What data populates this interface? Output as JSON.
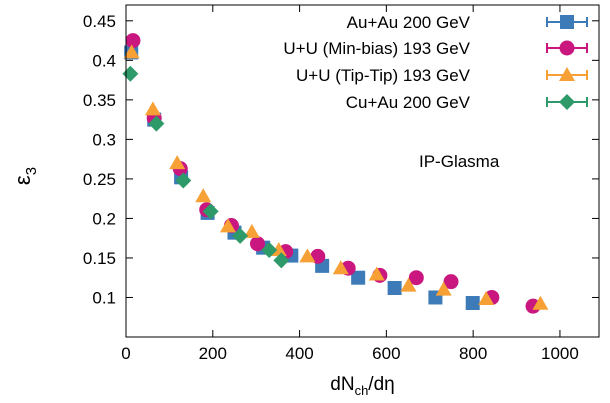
{
  "chart_data": {
    "type": "scatter",
    "title": "",
    "xlabel": {
      "main": "dN",
      "sub": "ch",
      "rest": "/dη"
    },
    "ylabel": {
      "main": "ε",
      "sub": "3"
    },
    "xlim": [
      0,
      1090
    ],
    "ylim": [
      0.05,
      0.47
    ],
    "xticks": [
      0,
      200,
      400,
      600,
      800,
      1000
    ],
    "yticks": [
      0.1,
      0.15,
      0.2,
      0.25,
      0.3,
      0.35,
      0.4,
      0.45
    ],
    "xtick_labels": [
      "0",
      "200",
      "400",
      "600",
      "800",
      "1000"
    ],
    "ytick_labels": [
      "0.1",
      "0.15",
      "0.2",
      "0.25",
      "0.3",
      "0.35",
      "0.4",
      "0.45"
    ],
    "grid": false,
    "legend_position": "top-right",
    "annotation": "IP-Glasma",
    "series": [
      {
        "name": "Au+Au 200 GeV",
        "marker": "square",
        "color": "#3d7ab8",
        "points": [
          [
            12,
            0.41
          ],
          [
            65,
            0.325
          ],
          [
            127,
            0.252
          ],
          [
            188,
            0.207
          ],
          [
            250,
            0.182
          ],
          [
            316,
            0.163
          ],
          [
            381,
            0.153
          ],
          [
            452,
            0.14
          ],
          [
            535,
            0.125
          ],
          [
            619,
            0.112
          ],
          [
            713,
            0.1
          ],
          [
            799,
            0.093
          ]
        ]
      },
      {
        "name": "U+U (Min-bias) 193 GeV",
        "marker": "circle",
        "color": "#c9177f",
        "points": [
          [
            16,
            0.425
          ],
          [
            65,
            0.327
          ],
          [
            125,
            0.263
          ],
          [
            186,
            0.211
          ],
          [
            243,
            0.191
          ],
          [
            303,
            0.168
          ],
          [
            368,
            0.158
          ],
          [
            442,
            0.152
          ],
          [
            512,
            0.137
          ],
          [
            585,
            0.128
          ],
          [
            669,
            0.125
          ],
          [
            749,
            0.12
          ],
          [
            843,
            0.1
          ],
          [
            938,
            0.089
          ]
        ]
      },
      {
        "name": "U+U (Tip-Tip) 193 GeV",
        "marker": "triangle",
        "color": "#f7a035",
        "points": [
          [
            13,
            0.41
          ],
          [
            62,
            0.338
          ],
          [
            118,
            0.27
          ],
          [
            178,
            0.228
          ],
          [
            235,
            0.19
          ],
          [
            290,
            0.183
          ],
          [
            352,
            0.16
          ],
          [
            418,
            0.152
          ],
          [
            495,
            0.137
          ],
          [
            578,
            0.129
          ],
          [
            651,
            0.115
          ],
          [
            732,
            0.11
          ],
          [
            830,
            0.098
          ],
          [
            955,
            0.092
          ]
        ]
      },
      {
        "name": "Cu+Au 200 GeV",
        "marker": "diamond",
        "color": "#2e9a6a",
        "points": [
          [
            10,
            0.383
          ],
          [
            70,
            0.32
          ],
          [
            132,
            0.248
          ],
          [
            195,
            0.209
          ],
          [
            263,
            0.178
          ],
          [
            330,
            0.16
          ],
          [
            358,
            0.147
          ]
        ]
      }
    ]
  }
}
